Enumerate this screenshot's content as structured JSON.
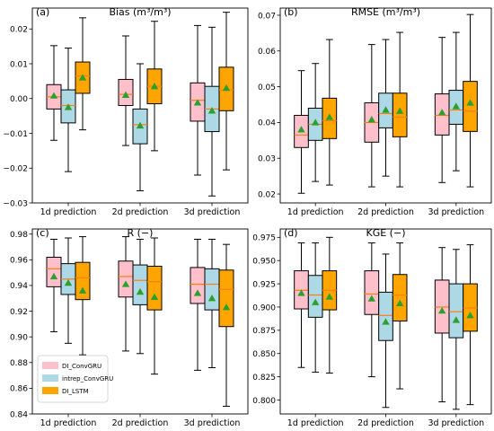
{
  "legend": [
    {
      "name": "DI_ConvGRU",
      "color": "#ffc0cb"
    },
    {
      "name": "intrep_ConvGRU",
      "color": "#add8e6"
    },
    {
      "name": "DI_LSTM",
      "color": "#ffa500"
    }
  ],
  "median_color": "#ff7f0e",
  "mean_marker_color": "#2ca02c",
  "chart_data": [
    {
      "type": "box",
      "panel_label": "(a)",
      "title": "Bias (m³/m³)",
      "categories": [
        "1d prediction",
        "2d prediction",
        "3d prediction"
      ],
      "ylim": [
        -0.03,
        0.026
      ],
      "yticks": [
        -0.03,
        -0.02,
        -0.01,
        0.0,
        0.01,
        0.02
      ],
      "ytick_labels": [
        "−0.03",
        "−0.02",
        "−0.01",
        "0.00",
        "0.01",
        "0.02"
      ],
      "series": [
        {
          "name": "DI_ConvGRU",
          "boxes": [
            {
              "whislo": -0.012,
              "q1": -0.003,
              "med": 0.0005,
              "q3": 0.004,
              "whishi": 0.0152,
              "mean": 0.0008
            },
            {
              "whislo": -0.0135,
              "q1": -0.002,
              "med": 0.0012,
              "q3": 0.0055,
              "whishi": 0.018,
              "mean": 0.001
            },
            {
              "whislo": -0.022,
              "q1": -0.0065,
              "med": -0.0005,
              "q3": 0.0045,
              "whishi": 0.021,
              "mean": -0.0012
            }
          ]
        },
        {
          "name": "intrep_ConvGRU",
          "boxes": [
            {
              "whislo": -0.021,
              "q1": -0.007,
              "med": -0.002,
              "q3": 0.0025,
              "whishi": 0.0145,
              "mean": -0.0025
            },
            {
              "whislo": -0.0265,
              "q1": -0.013,
              "med": -0.0075,
              "q3": -0.003,
              "whishi": 0.01,
              "mean": -0.0078
            },
            {
              "whislo": -0.028,
              "q1": -0.0095,
              "med": -0.003,
              "q3": 0.0035,
              "whishi": 0.0205,
              "mean": -0.0035
            }
          ]
        },
        {
          "name": "DI_LSTM",
          "boxes": [
            {
              "whislo": -0.009,
              "q1": 0.0015,
              "med": 0.0065,
              "q3": 0.0105,
              "whishi": 0.0232,
              "mean": 0.006
            },
            {
              "whislo": -0.015,
              "q1": -0.0015,
              "med": 0.0035,
              "q3": 0.0085,
              "whishi": 0.0222,
              "mean": 0.0035
            },
            {
              "whislo": -0.0205,
              "q1": -0.0035,
              "med": 0.0025,
              "q3": 0.009,
              "whishi": 0.0248,
              "mean": 0.003
            }
          ]
        }
      ]
    },
    {
      "type": "box",
      "panel_label": "(b)",
      "title": "RMSE (m³/m³)",
      "categories": [
        "1d prediction",
        "2d prediction",
        "3d prediction"
      ],
      "ylim": [
        0.0175,
        0.072
      ],
      "yticks": [
        0.02,
        0.03,
        0.04,
        0.05,
        0.06,
        0.07
      ],
      "ytick_labels": [
        "0.02",
        "0.03",
        "0.04",
        "0.05",
        "0.06",
        "0.07"
      ],
      "series": [
        {
          "name": "DI_ConvGRU",
          "boxes": [
            {
              "whislo": 0.0202,
              "q1": 0.033,
              "med": 0.0365,
              "q3": 0.042,
              "whishi": 0.0545,
              "mean": 0.038
            },
            {
              "whislo": 0.022,
              "q1": 0.0345,
              "med": 0.04,
              "q3": 0.0455,
              "whishi": 0.0618,
              "mean": 0.0408
            },
            {
              "whislo": 0.0232,
              "q1": 0.0365,
              "med": 0.042,
              "q3": 0.048,
              "whishi": 0.0638,
              "mean": 0.0428
            }
          ]
        },
        {
          "name": "intrep_ConvGRU",
          "boxes": [
            {
              "whislo": 0.0235,
              "q1": 0.035,
              "med": 0.0395,
              "q3": 0.044,
              "whishi": 0.0565,
              "mean": 0.04
            },
            {
              "whislo": 0.025,
              "q1": 0.0385,
              "med": 0.0425,
              "q3": 0.0482,
              "whishi": 0.0632,
              "mean": 0.0435
            },
            {
              "whislo": 0.0265,
              "q1": 0.0395,
              "med": 0.0435,
              "q3": 0.049,
              "whishi": 0.0652,
              "mean": 0.0445
            }
          ]
        },
        {
          "name": "DI_LSTM",
          "boxes": [
            {
              "whislo": 0.0225,
              "q1": 0.0355,
              "med": 0.0405,
              "q3": 0.0468,
              "whishi": 0.0632,
              "mean": 0.0415
            },
            {
              "whislo": 0.022,
              "q1": 0.036,
              "med": 0.0415,
              "q3": 0.0482,
              "whishi": 0.0652,
              "mean": 0.0432
            },
            {
              "whislo": 0.022,
              "q1": 0.0375,
              "med": 0.0432,
              "q3": 0.0515,
              "whishi": 0.0702,
              "mean": 0.0455
            }
          ]
        }
      ]
    },
    {
      "type": "box",
      "panel_label": "(c)",
      "title": "R (−)",
      "categories": [
        "1d prediction",
        "2d prediction",
        "3d prediction"
      ],
      "ylim": [
        0.84,
        0.984
      ],
      "yticks": [
        0.84,
        0.86,
        0.88,
        0.9,
        0.92,
        0.94,
        0.96,
        0.98
      ],
      "ytick_labels": [
        "0.84",
        "0.86",
        "0.88",
        "0.90",
        "0.92",
        "0.94",
        "0.96",
        "0.98"
      ],
      "series": [
        {
          "name": "DI_ConvGRU",
          "boxes": [
            {
              "whislo": 0.904,
              "q1": 0.939,
              "med": 0.953,
              "q3": 0.962,
              "whishi": 0.976,
              "mean": 0.947
            },
            {
              "whislo": 0.889,
              "q1": 0.931,
              "med": 0.947,
              "q3": 0.959,
              "whishi": 0.978,
              "mean": 0.941
            },
            {
              "whislo": 0.874,
              "q1": 0.926,
              "med": 0.941,
              "q3": 0.954,
              "whishi": 0.976,
              "mean": 0.934
            }
          ]
        },
        {
          "name": "intrep_ConvGRU",
          "boxes": [
            {
              "whislo": 0.895,
              "q1": 0.933,
              "med": 0.945,
              "q3": 0.957,
              "whishi": 0.977,
              "mean": 0.942
            },
            {
              "whislo": 0.887,
              "q1": 0.925,
              "med": 0.944,
              "q3": 0.956,
              "whishi": 0.976,
              "mean": 0.935
            },
            {
              "whislo": 0.876,
              "q1": 0.921,
              "med": 0.941,
              "q3": 0.953,
              "whishi": 0.976,
              "mean": 0.93
            }
          ]
        },
        {
          "name": "DI_LSTM",
          "boxes": [
            {
              "whislo": 0.886,
              "q1": 0.929,
              "med": 0.946,
              "q3": 0.958,
              "whishi": 0.978,
              "mean": 0.936
            },
            {
              "whislo": 0.871,
              "q1": 0.921,
              "med": 0.943,
              "q3": 0.955,
              "whishi": 0.977,
              "mean": 0.931
            },
            {
              "whislo": 0.846,
              "q1": 0.908,
              "med": 0.937,
              "q3": 0.952,
              "whishi": 0.972,
              "mean": 0.923
            }
          ]
        }
      ]
    },
    {
      "type": "box",
      "panel_label": "(d)",
      "title": "KGE (−)",
      "categories": [
        "1d prediction",
        "2d prediction",
        "3d prediction"
      ],
      "ylim": [
        0.785,
        0.984
      ],
      "yticks": [
        0.8,
        0.825,
        0.85,
        0.875,
        0.9,
        0.925,
        0.95,
        0.975
      ],
      "ytick_labels": [
        "0.800",
        "0.825",
        "0.850",
        "0.875",
        "0.900",
        "0.925",
        "0.950",
        "0.975"
      ],
      "series": [
        {
          "name": "DI_ConvGRU",
          "boxes": [
            {
              "whislo": 0.835,
              "q1": 0.898,
              "med": 0.918,
              "q3": 0.939,
              "whishi": 0.969,
              "mean": 0.915
            },
            {
              "whislo": 0.825,
              "q1": 0.892,
              "med": 0.914,
              "q3": 0.939,
              "whishi": 0.969,
              "mean": 0.909
            },
            {
              "whislo": 0.798,
              "q1": 0.872,
              "med": 0.9,
              "q3": 0.929,
              "whishi": 0.964,
              "mean": 0.896
            }
          ]
        },
        {
          "name": "intrep_ConvGRU",
          "boxes": [
            {
              "whislo": 0.83,
              "q1": 0.889,
              "med": 0.913,
              "q3": 0.934,
              "whishi": 0.969,
              "mean": 0.905
            },
            {
              "whislo": 0.792,
              "q1": 0.864,
              "med": 0.891,
              "q3": 0.916,
              "whishi": 0.957,
              "mean": 0.884
            },
            {
              "whislo": 0.79,
              "q1": 0.867,
              "med": 0.895,
              "q3": 0.925,
              "whishi": 0.962,
              "mean": 0.886
            }
          ]
        },
        {
          "name": "DI_LSTM",
          "boxes": [
            {
              "whislo": 0.829,
              "q1": 0.897,
              "med": 0.918,
              "q3": 0.939,
              "whishi": 0.975,
              "mean": 0.911
            },
            {
              "whislo": 0.812,
              "q1": 0.885,
              "med": 0.913,
              "q3": 0.935,
              "whishi": 0.969,
              "mean": 0.904
            },
            {
              "whislo": 0.795,
              "q1": 0.874,
              "med": 0.899,
              "q3": 0.925,
              "whishi": 0.967,
              "mean": 0.891
            }
          ]
        }
      ]
    }
  ]
}
